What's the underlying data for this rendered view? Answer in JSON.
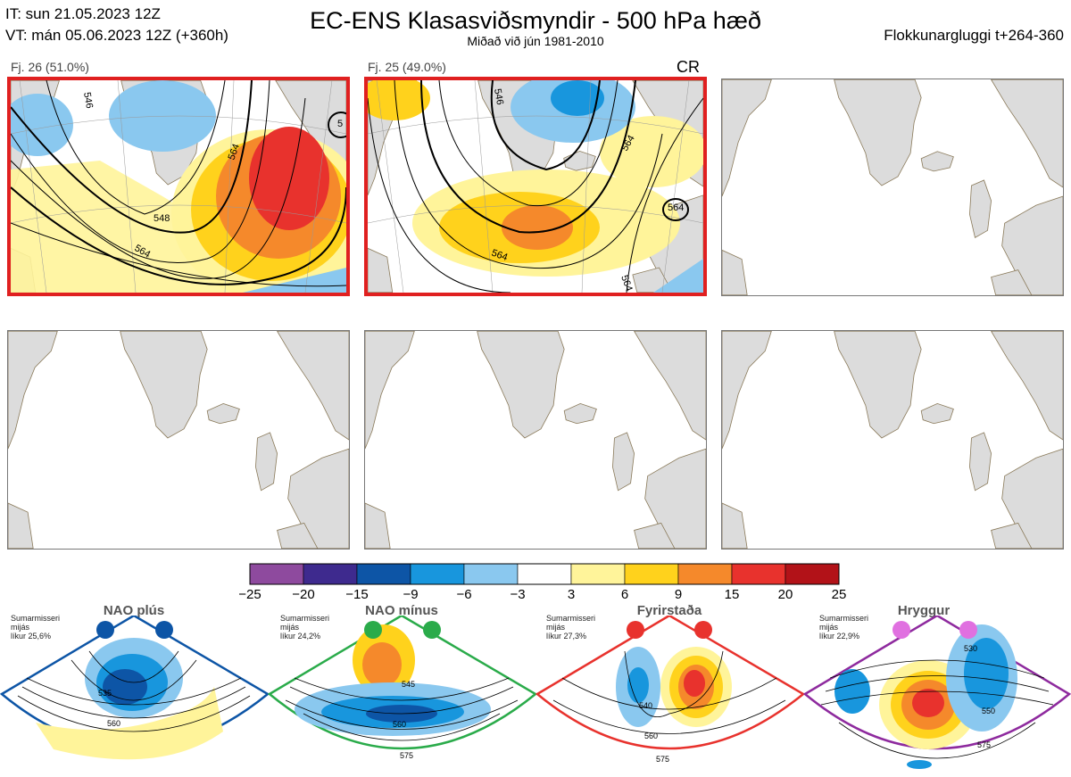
{
  "header": {
    "init_time": "IT: sun 21.05.2023 12Z",
    "valid_time": "VT: mán 05.06.2023 12Z  (+360h)",
    "title": "EC-ENS Klasasviðsmyndir - 500 hPa hæð",
    "subtitle": "Miðað við jún 1981-2010",
    "window": "Flokkunargluggi t+264-360"
  },
  "clusters": [
    {
      "label": "Fj. 26 (51.0%)",
      "tag": "",
      "selected": true,
      "contours": [
        "546",
        "548",
        "564",
        "564",
        "5"
      ]
    },
    {
      "label": "Fj. 25 (49.0%)",
      "tag": "CR",
      "selected": true,
      "contours": [
        "546",
        "564",
        "564",
        "564",
        "564"
      ]
    }
  ],
  "colorbar": {
    "ticks": [
      "−25",
      "−20",
      "−15",
      "−9",
      "−6",
      "−3",
      "3",
      "6",
      "9",
      "15",
      "20",
      "25"
    ],
    "colors": [
      "#8e4a9e",
      "#3e2a8e",
      "#0d55a6",
      "#1896dd",
      "#8ac8ef",
      "#ffffff",
      "#fff49a",
      "#ffd21c",
      "#f5892b",
      "#e8322d",
      "#b21218"
    ]
  },
  "regimes": [
    {
      "name": "NAO plús",
      "season": "Sumarmisseri",
      "mean": "mijás",
      "prob": "líkur 25,6%",
      "color": "#0d55a6",
      "contours": [
        "535",
        "560"
      ]
    },
    {
      "name": "NAO mínus",
      "season": "Sumarmisseri",
      "mean": "mijás",
      "prob": "líkur 24,2%",
      "color": "#2aab4a",
      "contours": [
        "545",
        "560",
        "575"
      ]
    },
    {
      "name": "Fyrirstaða",
      "season": "Sumarmisseri",
      "mean": "mijás",
      "prob": "líkur 27,3%",
      "color": "#e8322d",
      "contours": [
        "540",
        "560",
        "575"
      ]
    },
    {
      "name": "Hryggur",
      "season": "Sumarmisseri",
      "mean": "mijás",
      "prob": "líkur 22,9%",
      "color": "#e070e0",
      "contours": [
        "530",
        "550",
        "575"
      ]
    }
  ]
}
